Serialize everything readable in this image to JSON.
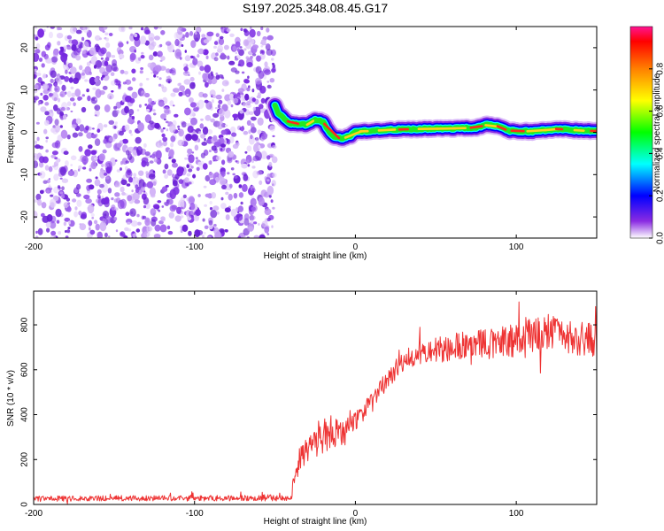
{
  "title": "S197.2025.348.08.45.G17",
  "chart_data": [
    {
      "type": "heatmap",
      "name": "spectrogram",
      "xlabel": "Height of straight line (km)",
      "ylabel": "Frequency (Hz)",
      "xlim": [
        -200,
        150
      ],
      "ylim": [
        -25,
        25
      ],
      "xticks": [
        -200,
        -100,
        0,
        100
      ],
      "yticks": [
        -20,
        -10,
        0,
        10,
        20
      ],
      "noise_region_x": [
        -200,
        -50
      ],
      "ridge": [
        {
          "x": -50,
          "y": 6.5
        },
        {
          "x": -48,
          "y": 4.5
        },
        {
          "x": -45,
          "y": 3.5
        },
        {
          "x": -40,
          "y": 2
        },
        {
          "x": -35,
          "y": 2
        },
        {
          "x": -30,
          "y": 1.8
        },
        {
          "x": -25,
          "y": 3
        },
        {
          "x": -20,
          "y": 2.5
        },
        {
          "x": -17,
          "y": 0.5
        },
        {
          "x": -13,
          "y": -1.2
        },
        {
          "x": -8,
          "y": -1.5
        },
        {
          "x": -3,
          "y": -0.8
        },
        {
          "x": 0,
          "y": 0.2
        },
        {
          "x": 10,
          "y": 0.3
        },
        {
          "x": 20,
          "y": 0.6
        },
        {
          "x": 40,
          "y": 0.8
        },
        {
          "x": 60,
          "y": 0.9
        },
        {
          "x": 75,
          "y": 1.1
        },
        {
          "x": 82,
          "y": 1.8
        },
        {
          "x": 88,
          "y": 1.5
        },
        {
          "x": 95,
          "y": 0.4
        },
        {
          "x": 110,
          "y": 0.2
        },
        {
          "x": 125,
          "y": 0.8
        },
        {
          "x": 140,
          "y": 0.4
        },
        {
          "x": 150,
          "y": 0.3
        }
      ],
      "colorbar": {
        "label": "Normalized spectral amplitude",
        "ticks": [
          "0.0",
          "0.2",
          "0.4",
          "0.6",
          "0.8"
        ],
        "range": [
          0,
          1
        ]
      }
    },
    {
      "type": "line",
      "name": "snr",
      "xlabel": "Height of straight line (km)",
      "ylabel": "SNR (10 * v/v)",
      "xlim": [
        -200,
        150
      ],
      "ylim": [
        0,
        950
      ],
      "xticks": [
        -200,
        -100,
        0,
        100
      ],
      "yticks": [
        0,
        200,
        400,
        600,
        800
      ],
      "color": "#ee3333",
      "series": [
        {
          "name": "SNR",
          "x": [
            -200,
            -150,
            -100,
            -60,
            -40,
            -39,
            -35,
            -30,
            -25,
            -20,
            -15,
            -10,
            -5,
            0,
            5,
            10,
            15,
            20,
            25,
            30,
            35,
            40,
            50,
            60,
            70,
            80,
            90,
            100,
            110,
            120,
            130,
            140,
            150
          ],
          "values": [
            25,
            28,
            27,
            30,
            28,
            80,
            200,
            240,
            280,
            320,
            330,
            310,
            330,
            380,
            410,
            450,
            500,
            560,
            600,
            640,
            660,
            680,
            690,
            700,
            710,
            710,
            720,
            730,
            760,
            770,
            740,
            740,
            730
          ],
          "noise_amplitude": [
            12,
            12,
            12,
            14,
            14,
            35,
            55,
            60,
            70,
            90,
            80,
            60,
            60,
            50,
            50,
            50,
            45,
            45,
            45,
            45,
            50,
            55,
            60,
            60,
            65,
            70,
            70,
            75,
            80,
            80,
            75,
            75,
            75
          ]
        }
      ]
    }
  ]
}
